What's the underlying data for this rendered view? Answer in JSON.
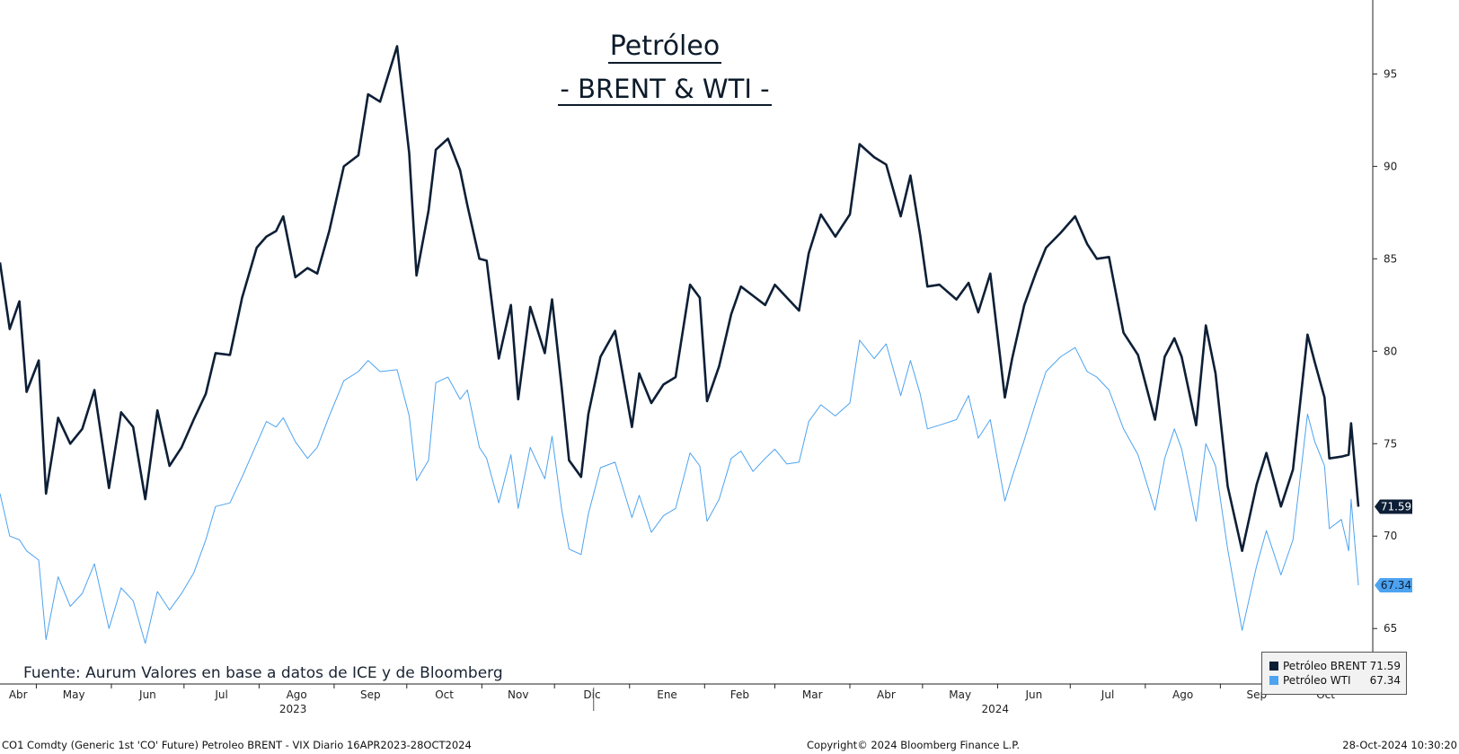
{
  "title": {
    "line1": "Petróleo",
    "line2": "- BRENT & WTI -"
  },
  "source_note": "Fuente: Aurum Valores en base a datos de ICE y de Bloomberg",
  "footer": {
    "left": "CO1 Comdty (Generic 1st 'CO' Future) Petroleo BRENT - VIX  Diario 16APR2023-28OCT2024",
    "center": "Copyright© 2024 Bloomberg Finance L.P.",
    "right": "28-Oct-2024 10:30:20"
  },
  "legend": [
    {
      "name": "Petróleo BRENT",
      "value": "71.59",
      "color": "#0d1f36"
    },
    {
      "name": "Petróleo WTI",
      "value": "67.34",
      "color": "#4da3f0"
    }
  ],
  "chart_data": {
    "type": "line",
    "title": "Petróleo - BRENT & WTI -",
    "y_axis_side": "right",
    "ylim": [
      62,
      99
    ],
    "yticks": [
      65,
      70,
      75,
      80,
      85,
      90,
      95
    ],
    "x_range": [
      "2023-04-16",
      "2024-10-28"
    ],
    "month_labels": [
      {
        "date": "2023-04-01",
        "label": "Abr"
      },
      {
        "date": "2023-05-01",
        "label": "May"
      },
      {
        "date": "2023-06-01",
        "label": "Jun"
      },
      {
        "date": "2023-07-01",
        "label": "Jul"
      },
      {
        "date": "2023-08-01",
        "label": "Ago"
      },
      {
        "date": "2023-09-01",
        "label": "Sep"
      },
      {
        "date": "2023-10-01",
        "label": "Oct"
      },
      {
        "date": "2023-11-01",
        "label": "Nov"
      },
      {
        "date": "2023-12-01",
        "label": "Dic"
      },
      {
        "date": "2024-01-01",
        "label": "Ene"
      },
      {
        "date": "2024-02-01",
        "label": "Feb"
      },
      {
        "date": "2024-03-01",
        "label": "Mar"
      },
      {
        "date": "2024-04-01",
        "label": "Abr"
      },
      {
        "date": "2024-05-01",
        "label": "May"
      },
      {
        "date": "2024-06-01",
        "label": "Jun"
      },
      {
        "date": "2024-07-01",
        "label": "Jul"
      },
      {
        "date": "2024-08-01",
        "label": "Ago"
      },
      {
        "date": "2024-09-01",
        "label": "Sep"
      },
      {
        "date": "2024-10-01",
        "label": "Oct"
      }
    ],
    "year_labels": [
      {
        "date": "2023-08-15",
        "label": "2023"
      },
      {
        "date": "2024-05-31",
        "label": "2024"
      }
    ],
    "year_divider": "2024-01-01",
    "series": [
      {
        "name": "Petróleo BRENT",
        "color": "#0d1f36",
        "last_label": "71.59",
        "points": [
          [
            "2023-04-16",
            84.8
          ],
          [
            "2023-04-20",
            81.2
          ],
          [
            "2023-04-24",
            82.7
          ],
          [
            "2023-04-27",
            77.8
          ],
          [
            "2023-05-02",
            79.5
          ],
          [
            "2023-05-05",
            72.3
          ],
          [
            "2023-05-10",
            76.4
          ],
          [
            "2023-05-15",
            75.0
          ],
          [
            "2023-05-20",
            75.8
          ],
          [
            "2023-05-25",
            77.9
          ],
          [
            "2023-05-31",
            72.6
          ],
          [
            "2023-06-05",
            76.7
          ],
          [
            "2023-06-10",
            75.9
          ],
          [
            "2023-06-15",
            72.0
          ],
          [
            "2023-06-20",
            76.8
          ],
          [
            "2023-06-25",
            73.8
          ],
          [
            "2023-06-30",
            74.8
          ],
          [
            "2023-07-05",
            76.3
          ],
          [
            "2023-07-10",
            77.7
          ],
          [
            "2023-07-14",
            79.9
          ],
          [
            "2023-07-20",
            79.8
          ],
          [
            "2023-07-25",
            82.9
          ],
          [
            "2023-07-31",
            85.6
          ],
          [
            "2023-08-04",
            86.2
          ],
          [
            "2023-08-08",
            86.5
          ],
          [
            "2023-08-11",
            87.3
          ],
          [
            "2023-08-16",
            84.0
          ],
          [
            "2023-08-21",
            84.5
          ],
          [
            "2023-08-25",
            84.2
          ],
          [
            "2023-08-30",
            86.5
          ],
          [
            "2023-09-05",
            90.0
          ],
          [
            "2023-09-11",
            90.6
          ],
          [
            "2023-09-15",
            93.9
          ],
          [
            "2023-09-20",
            93.5
          ],
          [
            "2023-09-27",
            96.5
          ],
          [
            "2023-10-02",
            90.7
          ],
          [
            "2023-10-05",
            84.1
          ],
          [
            "2023-10-10",
            87.6
          ],
          [
            "2023-10-13",
            90.9
          ],
          [
            "2023-10-18",
            91.5
          ],
          [
            "2023-10-23",
            89.8
          ],
          [
            "2023-10-26",
            87.9
          ],
          [
            "2023-10-31",
            85.0
          ],
          [
            "2023-11-03",
            84.9
          ],
          [
            "2023-11-08",
            79.6
          ],
          [
            "2023-11-13",
            82.5
          ],
          [
            "2023-11-16",
            77.4
          ],
          [
            "2023-11-21",
            82.4
          ],
          [
            "2023-11-27",
            79.9
          ],
          [
            "2023-11-30",
            82.8
          ],
          [
            "2023-12-04",
            78.0
          ],
          [
            "2023-12-07",
            74.1
          ],
          [
            "2023-12-12",
            73.2
          ],
          [
            "2023-12-15",
            76.6
          ],
          [
            "2023-12-20",
            79.7
          ],
          [
            "2023-12-26",
            81.1
          ],
          [
            "2024-01-02",
            75.9
          ],
          [
            "2024-01-05",
            78.8
          ],
          [
            "2024-01-10",
            77.2
          ],
          [
            "2024-01-15",
            78.2
          ],
          [
            "2024-01-20",
            78.6
          ],
          [
            "2024-01-26",
            83.6
          ],
          [
            "2024-01-30",
            82.9
          ],
          [
            "2024-02-02",
            77.3
          ],
          [
            "2024-02-07",
            79.2
          ],
          [
            "2024-02-12",
            82.0
          ],
          [
            "2024-02-16",
            83.5
          ],
          [
            "2024-02-21",
            83.0
          ],
          [
            "2024-02-26",
            82.5
          ],
          [
            "2024-03-01",
            83.6
          ],
          [
            "2024-03-06",
            82.9
          ],
          [
            "2024-03-11",
            82.2
          ],
          [
            "2024-03-15",
            85.3
          ],
          [
            "2024-03-20",
            87.4
          ],
          [
            "2024-03-26",
            86.2
          ],
          [
            "2024-04-01",
            87.4
          ],
          [
            "2024-04-05",
            91.2
          ],
          [
            "2024-04-11",
            90.5
          ],
          [
            "2024-04-16",
            90.1
          ],
          [
            "2024-04-22",
            87.3
          ],
          [
            "2024-04-26",
            89.5
          ],
          [
            "2024-04-30",
            86.3
          ],
          [
            "2024-05-03",
            83.5
          ],
          [
            "2024-05-08",
            83.6
          ],
          [
            "2024-05-15",
            82.8
          ],
          [
            "2024-05-20",
            83.7
          ],
          [
            "2024-05-24",
            82.1
          ],
          [
            "2024-05-29",
            84.2
          ],
          [
            "2024-06-04",
            77.5
          ],
          [
            "2024-06-07",
            79.6
          ],
          [
            "2024-06-12",
            82.5
          ],
          [
            "2024-06-17",
            84.3
          ],
          [
            "2024-06-21",
            85.6
          ],
          [
            "2024-06-27",
            86.4
          ],
          [
            "2024-07-03",
            87.3
          ],
          [
            "2024-07-08",
            85.8
          ],
          [
            "2024-07-12",
            85.0
          ],
          [
            "2024-07-17",
            85.1
          ],
          [
            "2024-07-23",
            81.0
          ],
          [
            "2024-07-29",
            79.8
          ],
          [
            "2024-08-05",
            76.3
          ],
          [
            "2024-08-09",
            79.7
          ],
          [
            "2024-08-13",
            80.7
          ],
          [
            "2024-08-16",
            79.7
          ],
          [
            "2024-08-22",
            76.0
          ],
          [
            "2024-08-26",
            81.4
          ],
          [
            "2024-08-30",
            78.8
          ],
          [
            "2024-09-04",
            72.7
          ],
          [
            "2024-09-10",
            69.2
          ],
          [
            "2024-09-16",
            72.8
          ],
          [
            "2024-09-20",
            74.5
          ],
          [
            "2024-09-26",
            71.6
          ],
          [
            "2024-10-01",
            73.6
          ],
          [
            "2024-10-07",
            80.9
          ],
          [
            "2024-10-10",
            79.4
          ],
          [
            "2024-10-14",
            77.5
          ],
          [
            "2024-10-16",
            74.2
          ],
          [
            "2024-10-21",
            74.3
          ],
          [
            "2024-10-24",
            74.4
          ],
          [
            "2024-10-25",
            76.1
          ],
          [
            "2024-10-28",
            71.59
          ]
        ]
      },
      {
        "name": "Petróleo WTI",
        "color": "#4da3f0",
        "last_label": "67.34",
        "points": [
          [
            "2023-04-16",
            72.3
          ],
          [
            "2023-04-20",
            70.0
          ],
          [
            "2023-04-24",
            69.8
          ],
          [
            "2023-04-27",
            69.2
          ],
          [
            "2023-05-02",
            68.7
          ],
          [
            "2023-05-05",
            64.4
          ],
          [
            "2023-05-10",
            67.8
          ],
          [
            "2023-05-15",
            66.2
          ],
          [
            "2023-05-20",
            66.9
          ],
          [
            "2023-05-25",
            68.5
          ],
          [
            "2023-05-31",
            65.0
          ],
          [
            "2023-06-05",
            67.2
          ],
          [
            "2023-06-10",
            66.5
          ],
          [
            "2023-06-15",
            64.2
          ],
          [
            "2023-06-20",
            67.0
          ],
          [
            "2023-06-25",
            66.0
          ],
          [
            "2023-06-30",
            66.9
          ],
          [
            "2023-07-05",
            68.0
          ],
          [
            "2023-07-10",
            69.8
          ],
          [
            "2023-07-14",
            71.6
          ],
          [
            "2023-07-20",
            71.8
          ],
          [
            "2023-07-25",
            73.2
          ],
          [
            "2023-07-31",
            75.0
          ],
          [
            "2023-08-04",
            76.2
          ],
          [
            "2023-08-08",
            75.9
          ],
          [
            "2023-08-11",
            76.4
          ],
          [
            "2023-08-16",
            75.1
          ],
          [
            "2023-08-21",
            74.2
          ],
          [
            "2023-08-25",
            74.8
          ],
          [
            "2023-08-30",
            76.5
          ],
          [
            "2023-09-05",
            78.4
          ],
          [
            "2023-09-11",
            78.9
          ],
          [
            "2023-09-15",
            79.5
          ],
          [
            "2023-09-20",
            78.9
          ],
          [
            "2023-09-27",
            79.0
          ],
          [
            "2023-10-02",
            76.5
          ],
          [
            "2023-10-05",
            73.0
          ],
          [
            "2023-10-10",
            74.1
          ],
          [
            "2023-10-13",
            78.3
          ],
          [
            "2023-10-18",
            78.6
          ],
          [
            "2023-10-23",
            77.4
          ],
          [
            "2023-10-26",
            77.9
          ],
          [
            "2023-10-31",
            74.8
          ],
          [
            "2023-11-03",
            74.2
          ],
          [
            "2023-11-08",
            71.8
          ],
          [
            "2023-11-13",
            74.4
          ],
          [
            "2023-11-16",
            71.5
          ],
          [
            "2023-11-21",
            74.8
          ],
          [
            "2023-11-27",
            73.1
          ],
          [
            "2023-11-30",
            75.4
          ],
          [
            "2023-12-04",
            71.4
          ],
          [
            "2023-12-07",
            69.3
          ],
          [
            "2023-12-12",
            69.0
          ],
          [
            "2023-12-15",
            71.2
          ],
          [
            "2023-12-20",
            73.7
          ],
          [
            "2023-12-26",
            74.0
          ],
          [
            "2024-01-02",
            71.0
          ],
          [
            "2024-01-05",
            72.2
          ],
          [
            "2024-01-10",
            70.2
          ],
          [
            "2024-01-15",
            71.1
          ],
          [
            "2024-01-20",
            71.5
          ],
          [
            "2024-01-26",
            74.5
          ],
          [
            "2024-01-30",
            73.8
          ],
          [
            "2024-02-02",
            70.8
          ],
          [
            "2024-02-07",
            72.0
          ],
          [
            "2024-02-12",
            74.2
          ],
          [
            "2024-02-16",
            74.6
          ],
          [
            "2024-02-21",
            73.5
          ],
          [
            "2024-02-26",
            74.2
          ],
          [
            "2024-03-01",
            74.7
          ],
          [
            "2024-03-06",
            73.9
          ],
          [
            "2024-03-11",
            74.0
          ],
          [
            "2024-03-15",
            76.2
          ],
          [
            "2024-03-20",
            77.1
          ],
          [
            "2024-03-26",
            76.5
          ],
          [
            "2024-04-01",
            77.2
          ],
          [
            "2024-04-05",
            80.6
          ],
          [
            "2024-04-11",
            79.6
          ],
          [
            "2024-04-16",
            80.4
          ],
          [
            "2024-04-22",
            77.6
          ],
          [
            "2024-04-26",
            79.5
          ],
          [
            "2024-04-30",
            77.7
          ],
          [
            "2024-05-03",
            75.8
          ],
          [
            "2024-05-08",
            76.0
          ],
          [
            "2024-05-15",
            76.3
          ],
          [
            "2024-05-20",
            77.6
          ],
          [
            "2024-05-24",
            75.3
          ],
          [
            "2024-05-29",
            76.3
          ],
          [
            "2024-06-04",
            71.9
          ],
          [
            "2024-06-07",
            73.2
          ],
          [
            "2024-06-12",
            75.2
          ],
          [
            "2024-06-17",
            77.3
          ],
          [
            "2024-06-21",
            78.9
          ],
          [
            "2024-06-27",
            79.7
          ],
          [
            "2024-07-03",
            80.2
          ],
          [
            "2024-07-08",
            78.9
          ],
          [
            "2024-07-12",
            78.6
          ],
          [
            "2024-07-17",
            77.9
          ],
          [
            "2024-07-23",
            75.8
          ],
          [
            "2024-07-29",
            74.4
          ],
          [
            "2024-08-05",
            71.4
          ],
          [
            "2024-08-09",
            74.2
          ],
          [
            "2024-08-13",
            75.8
          ],
          [
            "2024-08-16",
            74.7
          ],
          [
            "2024-08-22",
            70.8
          ],
          [
            "2024-08-26",
            75.0
          ],
          [
            "2024-08-30",
            73.8
          ],
          [
            "2024-09-04",
            69.3
          ],
          [
            "2024-09-10",
            64.9
          ],
          [
            "2024-09-16",
            68.4
          ],
          [
            "2024-09-20",
            70.3
          ],
          [
            "2024-09-26",
            67.9
          ],
          [
            "2024-10-01",
            69.8
          ],
          [
            "2024-10-07",
            76.6
          ],
          [
            "2024-10-10",
            75.1
          ],
          [
            "2024-10-14",
            73.8
          ],
          [
            "2024-10-16",
            70.4
          ],
          [
            "2024-10-21",
            70.9
          ],
          [
            "2024-10-24",
            69.2
          ],
          [
            "2024-10-25",
            72.0
          ],
          [
            "2024-10-28",
            67.34
          ]
        ]
      }
    ]
  }
}
